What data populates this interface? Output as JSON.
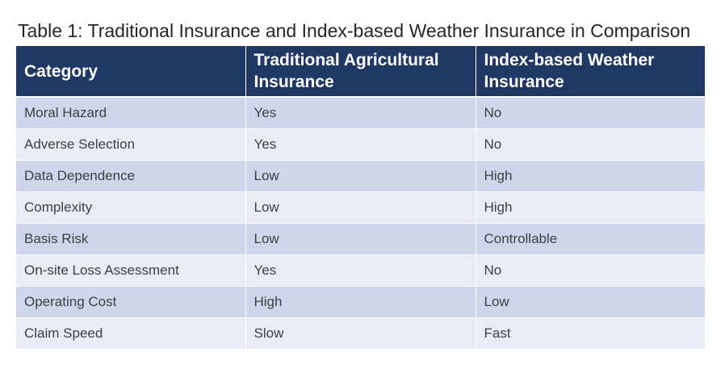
{
  "caption": "Table 1: Traditional Insurance and Index-based Weather Insurance in Comparison",
  "table": {
    "headers": [
      "Category",
      "Traditional Agricultural Insurance",
      "Index-based Weather Insurance"
    ],
    "rows": [
      [
        "Moral Hazard",
        "Yes",
        "No"
      ],
      [
        "Adverse Selection",
        "Yes",
        "No"
      ],
      [
        "Data Dependence",
        "Low",
        "High"
      ],
      [
        "Complexity",
        "Low",
        "High"
      ],
      [
        "Basis Risk",
        "Low",
        "Controllable"
      ],
      [
        "On-site Loss Assessment",
        "Yes",
        "No"
      ],
      [
        "Operating Cost",
        "High",
        "Low"
      ],
      [
        "Claim Speed",
        "Slow",
        "Fast"
      ]
    ]
  },
  "colors": {
    "header_bg": "#1f3864",
    "header_text": "#ffffff",
    "row_band_dark": "#cfd5ea",
    "row_band_light": "#e9ebf5"
  }
}
